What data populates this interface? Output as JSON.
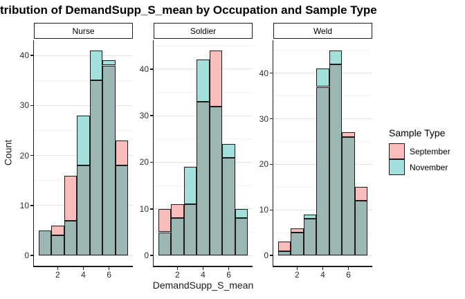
{
  "title": "tribution of DemandSupp_S_mean by Occupation and Sample Type",
  "axes": {
    "x_title": "DemandSupp_S_mean",
    "y_title": "Count",
    "x_ticks": [
      2,
      4,
      6
    ],
    "y_ticks": [
      0,
      10,
      20,
      30,
      40
    ],
    "y_minor_ticks": [
      5,
      15,
      25,
      35,
      45
    ]
  },
  "legend": {
    "title": "Sample Type",
    "items": [
      {
        "label": "September",
        "color": "#F8BDBA"
      },
      {
        "label": "November",
        "color": "#A3E0DC"
      }
    ]
  },
  "colors": {
    "september": "#F8BDBA",
    "november": "#A3E0DC",
    "overlap": "#9BB7B4",
    "bar_border": "#1a1a1a",
    "grid_major": "#e3e3e3",
    "grid_minor": "#f1f1f1"
  },
  "chart_data": {
    "type": "bar",
    "subtype": "overlaid-histogram",
    "title": "tribution of DemandSupp_S_mean by Occupation and Sample Type",
    "xlabel": "DemandSupp_S_mean",
    "ylabel": "Count",
    "binwidth": 1,
    "bin_centers": [
      1,
      2,
      3,
      4,
      5,
      6,
      7
    ],
    "x_range": [
      0.5,
      7.5
    ],
    "scales": "free_y",
    "grid": "horizontal-only",
    "legend_position": "right",
    "facets": [
      {
        "label": "Nurse",
        "y_max": 41,
        "series": [
          {
            "name": "September",
            "values": [
              5,
              6,
              16,
              18,
              35,
              38,
              23
            ]
          },
          {
            "name": "November",
            "values": [
              5,
              4,
              7,
              28,
              41,
              39,
              18
            ]
          }
        ]
      },
      {
        "label": "Soldier",
        "y_max": 44,
        "series": [
          {
            "name": "September",
            "values": [
              10,
              11,
              11,
              33,
              44,
              21,
              8
            ]
          },
          {
            "name": "November",
            "values": [
              5,
              8,
              19,
              42,
              32,
              24,
              10
            ]
          }
        ]
      },
      {
        "label": "Weld",
        "y_max": 45,
        "series": [
          {
            "name": "September",
            "values": [
              3,
              6,
              8,
              37,
              42,
              27,
              15
            ]
          },
          {
            "name": "November",
            "values": [
              1,
              5,
              9,
              41,
              45,
              26,
              12
            ]
          }
        ]
      }
    ]
  }
}
